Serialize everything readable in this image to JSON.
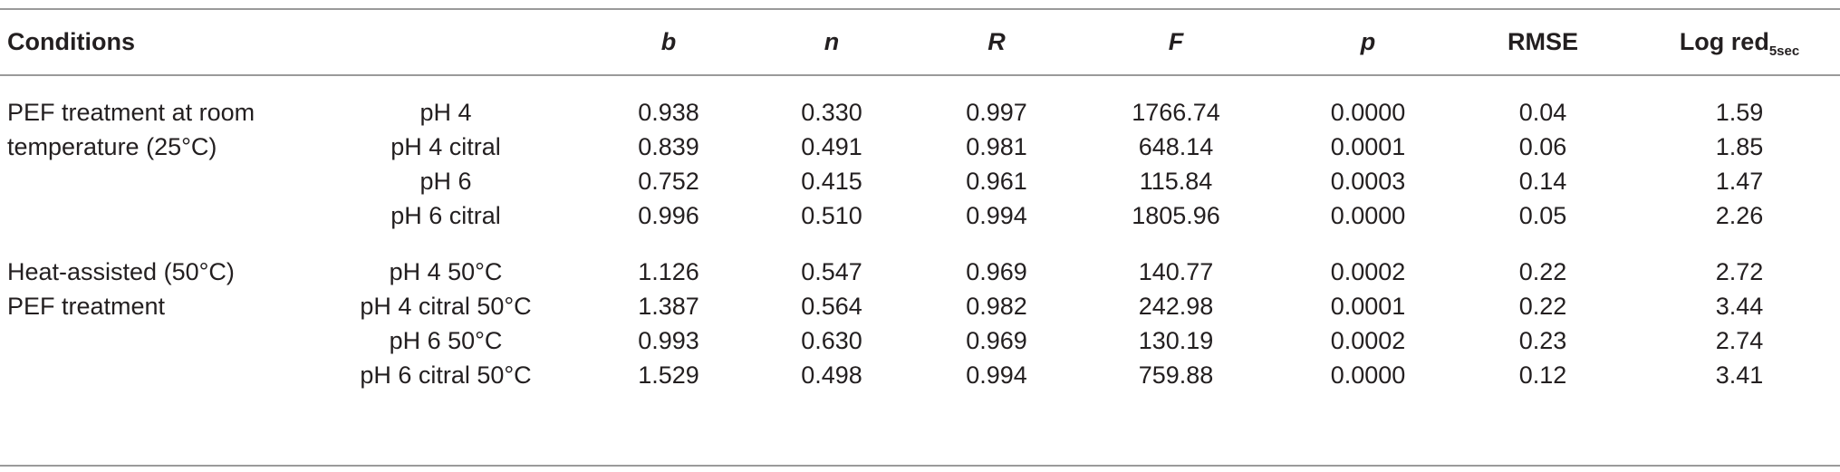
{
  "table": {
    "headers": {
      "conditions": "Conditions",
      "b": "b",
      "n": "n",
      "R": "R",
      "F": "F",
      "p": "p",
      "rmse": "RMSE",
      "log_red": "Log red",
      "log_red_sub": "5sec"
    },
    "groups": [
      {
        "label_lines": [
          "PEF treatment at room",
          "temperature (25°C)"
        ],
        "rows": [
          {
            "cond": "pH 4",
            "b": "0.938",
            "n": "0.330",
            "R": "0.997",
            "F": "1766.74",
            "p": "0.0000",
            "rmse": "0.04",
            "log_red": "1.59"
          },
          {
            "cond": "pH 4 citral",
            "b": "0.839",
            "n": "0.491",
            "R": "0.981",
            "F": "648.14",
            "p": "0.0001",
            "rmse": "0.06",
            "log_red": "1.85"
          },
          {
            "cond": "pH 6",
            "b": "0.752",
            "n": "0.415",
            "R": "0.961",
            "F": "115.84",
            "p": "0.0003",
            "rmse": "0.14",
            "log_red": "1.47"
          },
          {
            "cond": "pH 6 citral",
            "b": "0.996",
            "n": "0.510",
            "R": "0.994",
            "F": "1805.96",
            "p": "0.0000",
            "rmse": "0.05",
            "log_red": "2.26"
          }
        ]
      },
      {
        "label_lines": [
          "Heat-assisted (50°C)",
          "PEF treatment"
        ],
        "rows": [
          {
            "cond": "pH 4 50°C",
            "b": "1.126",
            "n": "0.547",
            "R": "0.969",
            "F": "140.77",
            "p": "0.0002",
            "rmse": "0.22",
            "log_red": "2.72"
          },
          {
            "cond": "pH 4 citral 50°C",
            "b": "1.387",
            "n": "0.564",
            "R": "0.982",
            "F": "242.98",
            "p": "0.0001",
            "rmse": "0.22",
            "log_red": "3.44"
          },
          {
            "cond": "pH 6 50°C",
            "b": "0.993",
            "n": "0.630",
            "R": "0.969",
            "F": "130.19",
            "p": "0.0002",
            "rmse": "0.23",
            "log_red": "2.74"
          },
          {
            "cond": "pH 6 citral 50°C",
            "b": "1.529",
            "n": "0.498",
            "R": "0.994",
            "F": "759.88",
            "p": "0.0000",
            "rmse": "0.12",
            "log_red": "3.41"
          }
        ]
      }
    ]
  }
}
